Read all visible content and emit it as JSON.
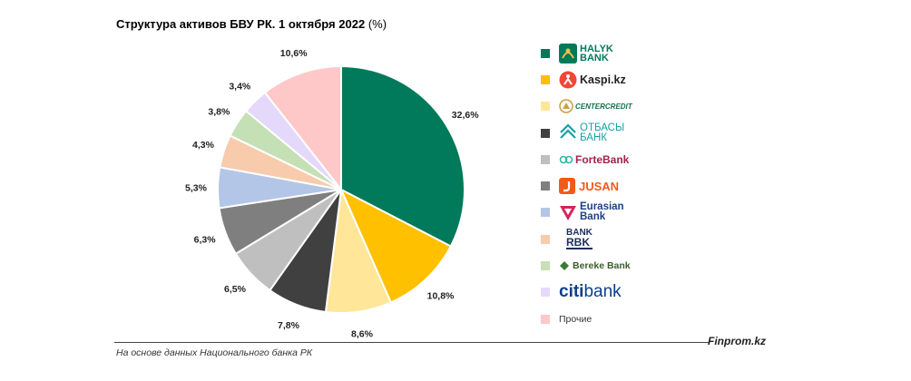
{
  "title": "Структура активов БВУ РК. 1 октября 2022",
  "title_unit": "(%)",
  "source_note": "На основе данных Национального банка РК",
  "brand": "Finprom.kz",
  "chart_data": {
    "type": "pie",
    "title": "Структура активов БВУ РК. 1 октября 2022 (%)",
    "unit": "%",
    "legend_position": "right",
    "start_angle": "12 o'clock, clockwise",
    "slices": [
      {
        "name": "Halyk Bank",
        "value": 32.6,
        "label": "32,6%",
        "color": "#007a5a"
      },
      {
        "name": "Kaspi.kz",
        "value": 10.8,
        "label": "10,8%",
        "color": "#ffc000"
      },
      {
        "name": "Centercredit",
        "value": 8.6,
        "label": "8,6%",
        "color": "#ffe699"
      },
      {
        "name": "Отбасы банк",
        "value": 7.8,
        "label": "7,8%",
        "color": "#404040"
      },
      {
        "name": "ForteBank",
        "value": 6.5,
        "label": "6,5%",
        "color": "#bfbfbf"
      },
      {
        "name": "Jusan",
        "value": 6.3,
        "label": "6,3%",
        "color": "#7f7f7f"
      },
      {
        "name": "Eurasian Bank",
        "value": 5.3,
        "label": "5,3%",
        "color": "#b4c6e7"
      },
      {
        "name": "Bank RBK",
        "value": 4.3,
        "label": "4,3%",
        "color": "#f8cbad"
      },
      {
        "name": "Bereke Bank",
        "value": 3.8,
        "label": "3,8%",
        "color": "#c5e0b4"
      },
      {
        "name": "Citibank",
        "value": 3.4,
        "label": "3,4%",
        "color": "#e4d9fb"
      },
      {
        "name": "Прочие",
        "value": 10.6,
        "label": "10,6%",
        "color": "#ffc8c8"
      }
    ]
  },
  "legend": [
    {
      "logo_icon": "halyk-bank-logo",
      "line1": "HALYK",
      "line2": "BANK",
      "color": "#007a5a"
    },
    {
      "logo_icon": "kaspi-logo",
      "text": "Kaspi.kz",
      "color": "#ffc000"
    },
    {
      "logo_icon": "centercredit-logo",
      "text": "CENTERCREDIT",
      "color": "#ffe699"
    },
    {
      "logo_icon": "otbasy-bank-logo",
      "line1": "ОТБАСЫ",
      "line2": "БАНК",
      "color": "#404040"
    },
    {
      "logo_icon": "fortebank-logo",
      "text": "ForteBank",
      "color": "#bfbfbf"
    },
    {
      "logo_icon": "jusan-logo",
      "text": "JUSAN",
      "color": "#7f7f7f"
    },
    {
      "logo_icon": "eurasian-bank-logo",
      "line1": "Eurasian",
      "line2": "Bank",
      "color": "#b4c6e7"
    },
    {
      "logo_icon": "bank-rbk-logo",
      "line1": "BANK",
      "line2": "RBK",
      "color": "#f8cbad"
    },
    {
      "logo_icon": "bereke-bank-logo",
      "text": "Bereke Bank",
      "color": "#c5e0b4"
    },
    {
      "logo_icon": "citibank-logo",
      "text1": "citi",
      "text2": "bank",
      "color": "#e4d9fb"
    },
    {
      "text": "Прочие",
      "color": "#ffc8c8"
    }
  ]
}
